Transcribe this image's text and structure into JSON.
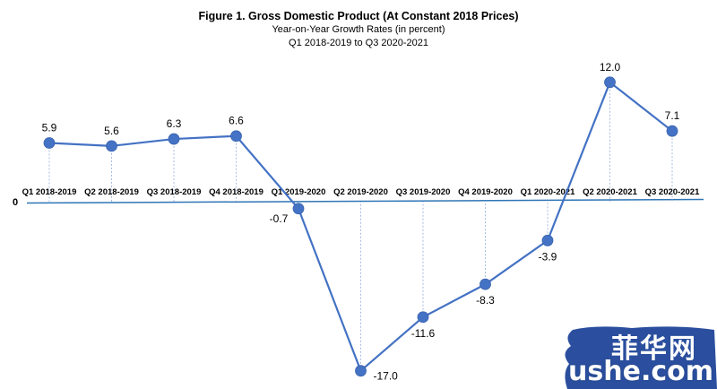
{
  "chart_data": {
    "type": "line",
    "title": "Figure 1. Gross Domestic Product (At Constant 2018 Prices)",
    "subtitle": "Year-on-Year Growth Rates (in percent)",
    "subtitle2": "Q1 2018-2019 to Q3 2020-2021",
    "categories": [
      "Q1 2018-2019",
      "Q2 2018-2019",
      "Q3 2018-2019",
      "Q4 2018-2019",
      "Q1 2019-2020",
      "Q2 2019-2020",
      "Q3 2019-2020",
      "Q4 2019-2020",
      "Q1 2020-2021",
      "Q2 2020-2021",
      "Q3 2020-2021"
    ],
    "values": [
      5.9,
      5.6,
      6.3,
      6.6,
      -0.7,
      -17.0,
      -11.6,
      -8.3,
      -3.9,
      12.0,
      7.1
    ],
    "data_labels": [
      "5.9",
      "5.6",
      "6.3",
      "6.6",
      "-0.7",
      "-17.0",
      "-11.6",
      "-8.3",
      "-3.9",
      "12.0",
      "7.1"
    ],
    "zero_label": "0",
    "ylim": [
      -17.0,
      12.0
    ],
    "grid": false,
    "legend": "none",
    "line_color": "#4472C4",
    "axis_color": "#2E75B6"
  },
  "watermark": {
    "text_cn": "菲华网",
    "text_url": "ushe.com",
    "color": "#2B4F9E"
  }
}
